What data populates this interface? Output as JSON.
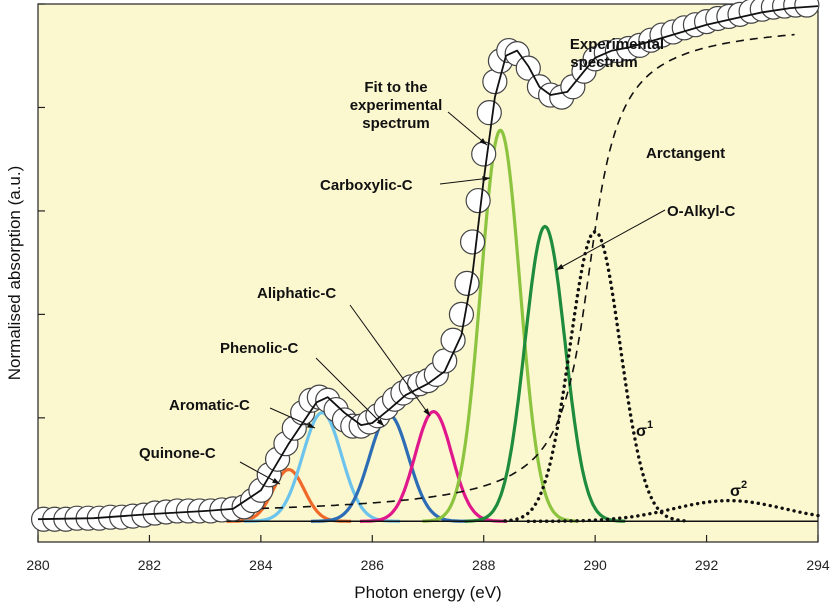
{
  "chart_data": {
    "type": "line",
    "xlabel": "Photon energy (eV)",
    "ylabel": "Normalised absorption (a.u.)",
    "xlim": [
      280,
      294
    ],
    "ylim": [
      -0.2,
      5.0
    ],
    "x_ticks": [
      "280",
      "282",
      "284",
      "286",
      "288",
      "290",
      "292",
      "294"
    ],
    "y_ticks": [
      0,
      1,
      2,
      3,
      4,
      5
    ],
    "background": "#fbf7cf",
    "colors": {
      "quinone": "#ef6a2a",
      "aromatic": "#6cc3ec",
      "phenolic": "#2c6db5",
      "aliphatic": "#e0188c",
      "carboxylic": "#8cc43f",
      "alkyl": "#1f8c3c",
      "fit": "#111111"
    },
    "experimental": {
      "name": "Experimental spectrum",
      "x": [
        280.1,
        280.3,
        280.5,
        280.7,
        280.9,
        281.1,
        281.3,
        281.5,
        281.7,
        281.9,
        282.1,
        282.3,
        282.5,
        282.7,
        282.9,
        283.1,
        283.3,
        283.5,
        283.7,
        283.85,
        284.0,
        284.15,
        284.3,
        284.45,
        284.6,
        284.75,
        284.9,
        285.05,
        285.2,
        285.35,
        285.5,
        285.65,
        285.8,
        285.95,
        286.1,
        286.25,
        286.4,
        286.55,
        286.7,
        286.85,
        287.0,
        287.15,
        287.3,
        287.45,
        287.6,
        287.7,
        287.8,
        287.9,
        288.0,
        288.1,
        288.2,
        288.3,
        288.45,
        288.6,
        288.8,
        289.0,
        289.2,
        289.4,
        289.6,
        289.8,
        290.0,
        290.2,
        290.4,
        290.6,
        290.8,
        291.0,
        291.2,
        291.4,
        291.6,
        291.8,
        292.0,
        292.2,
        292.4,
        292.6,
        292.8,
        293.0,
        293.2,
        293.4,
        293.6,
        293.8
      ],
      "y": [
        0.02,
        0.02,
        0.02,
        0.03,
        0.03,
        0.03,
        0.04,
        0.04,
        0.05,
        0.06,
        0.08,
        0.09,
        0.1,
        0.1,
        0.1,
        0.1,
        0.11,
        0.12,
        0.14,
        0.2,
        0.3,
        0.45,
        0.6,
        0.75,
        0.9,
        1.05,
        1.17,
        1.2,
        1.17,
        1.08,
        0.98,
        0.92,
        0.92,
        0.96,
        1.02,
        1.1,
        1.18,
        1.24,
        1.3,
        1.33,
        1.36,
        1.42,
        1.55,
        1.75,
        2.0,
        2.3,
        2.7,
        3.1,
        3.55,
        3.95,
        4.25,
        4.45,
        4.55,
        4.52,
        4.38,
        4.2,
        4.12,
        4.1,
        4.2,
        4.35,
        4.47,
        4.53,
        4.55,
        4.57,
        4.6,
        4.65,
        4.7,
        4.73,
        4.77,
        4.8,
        4.83,
        4.86,
        4.88,
        4.9,
        4.93,
        4.95,
        4.97,
        4.98,
        4.99,
        4.99
      ]
    },
    "fit": {
      "name": "Fit to the experimental spectrum",
      "x": [
        280,
        281,
        282,
        283,
        283.5,
        284,
        284.5,
        285,
        285.2,
        285.5,
        285.8,
        286,
        286.3,
        286.6,
        287,
        287.3,
        287.6,
        287.8,
        288,
        288.2,
        288.4,
        288.6,
        288.8,
        289,
        289.2,
        289.5,
        289.8,
        290,
        290.3,
        290.6,
        291,
        291.5,
        292,
        292.5,
        293,
        293.5,
        294
      ],
      "y": [
        0.02,
        0.03,
        0.07,
        0.1,
        0.12,
        0.3,
        0.75,
        1.15,
        1.2,
        1.05,
        0.93,
        0.95,
        1.08,
        1.22,
        1.33,
        1.45,
        1.8,
        2.4,
        3.3,
        4.1,
        4.5,
        4.55,
        4.4,
        4.2,
        4.12,
        4.15,
        4.35,
        4.48,
        4.55,
        4.58,
        4.64,
        4.72,
        4.8,
        4.86,
        4.92,
        4.96,
        4.98
      ]
    },
    "components": [
      {
        "key": "quinone",
        "label": "Quinone-C",
        "center": 284.5,
        "sigma": 0.28,
        "height": 0.5
      },
      {
        "key": "aromatic",
        "label": "Aromatic-C",
        "center": 285.1,
        "sigma": 0.35,
        "height": 1.05
      },
      {
        "key": "phenolic",
        "label": "Phenolic-C",
        "center": 286.3,
        "sigma": 0.35,
        "height": 1.03
      },
      {
        "key": "aliphatic",
        "label": "Aliphatic-C",
        "center": 287.1,
        "sigma": 0.33,
        "height": 1.06
      },
      {
        "key": "carboxylic",
        "label": "Carboxylic-C",
        "center": 288.3,
        "sigma": 0.35,
        "height": 3.78
      },
      {
        "key": "alkyl",
        "label": "O-Alkyl-C",
        "center": 289.1,
        "sigma": 0.36,
        "height": 2.85
      }
    ],
    "sigma_peaks": [
      {
        "label": "σ",
        "sup": "1",
        "center": 290.0,
        "sigma": 0.45,
        "height": 2.8
      },
      {
        "label": "σ",
        "sup": "2",
        "center": 292.4,
        "sigma": 1.0,
        "height": 0.2
      }
    ],
    "arctangent": {
      "label": "Arctangent",
      "center": 289.9,
      "width": 0.08,
      "height": 4.95
    },
    "annotations": {
      "experimental": [
        "Experimental",
        "spectrum"
      ],
      "fit": [
        "Fit to the",
        "experimental",
        "spectrum"
      ],
      "arctangent": "Arctangent",
      "carboxylic": "Carboxylic-C",
      "alkyl": "O-Alkyl-C",
      "aliphatic": "Aliphatic-C",
      "phenolic": "Phenolic-C",
      "aromatic": "Aromatic-C",
      "quinone": "Quinone-C",
      "sigma1": "σ",
      "sigma1_sup": "1",
      "sigma2": "σ",
      "sigma2_sup": "2"
    }
  }
}
